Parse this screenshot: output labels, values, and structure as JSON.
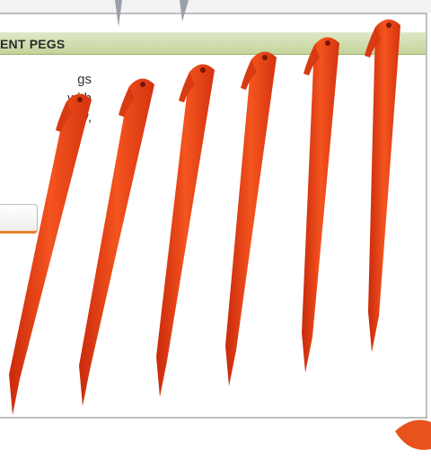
{
  "header": {
    "title": "ENT PEGS"
  },
  "description": {
    "lines": [
      "gs",
      "with",
      "ay,"
    ]
  }
}
